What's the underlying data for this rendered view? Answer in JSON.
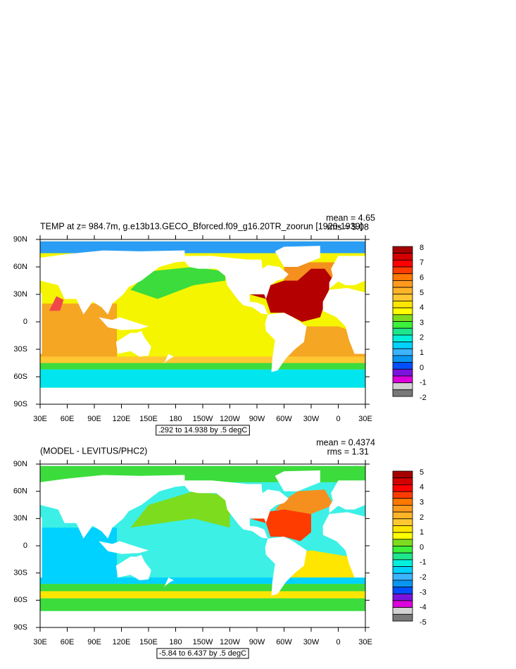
{
  "panels": [
    {
      "title": "TEMP at z= 984.7m, g.e13b13.GECO_Bforced.f09_g16.20TR_zoorun [1920-1939]",
      "mean": "mean = 4.65",
      "rms": "rms = 5.08",
      "range": ".292 to 14.938 by .5 degC",
      "colorbar": {
        "labels": [
          8,
          7,
          6,
          5,
          4,
          3,
          2,
          1,
          0,
          -1,
          -2
        ]
      }
    },
    {
      "title": "(MODEL - LEVITUS/PHC2)",
      "mean": "mean = 0.4374",
      "rms": "rms = 1.31",
      "range": "-5.84 to 6.437 by .5 degC",
      "colorbar": {
        "labels": [
          5,
          4,
          3,
          2,
          1,
          0,
          -1,
          -2,
          -3,
          -4,
          -5
        ]
      }
    }
  ],
  "colorbar_colors": [
    "#a50000",
    "#d40000",
    "#ff0000",
    "#ff3c00",
    "#ff7800",
    "#ff9a1e",
    "#ffb428",
    "#ffc832",
    "#ffe600",
    "#ffff00",
    "#7ddc1e",
    "#3cf03c",
    "#1ee68c",
    "#00f0dc",
    "#00d2ff",
    "#3cb4ff",
    "#0a96f0",
    "#0050ff",
    "#7a14dc",
    "#dc00dc",
    "#d2d2d2",
    "#787878"
  ],
  "lat_ticks": [
    {
      "value": 90,
      "label": "90N"
    },
    {
      "value": 60,
      "label": "60N"
    },
    {
      "value": 30,
      "label": "30N"
    },
    0,
    {
      "value": -30,
      "label": "30S"
    },
    {
      "value": -60,
      "label": "60S"
    },
    {
      "value": -90,
      "label": "90S"
    }
  ],
  "lon_ticks": [
    {
      "value": 30,
      "label": "30E"
    },
    {
      "value": 60,
      "label": "60E"
    },
    {
      "value": 90,
      "label": "90E"
    },
    {
      "value": 120,
      "label": "120E"
    },
    {
      "value": 150,
      "label": "150E"
    },
    {
      "value": 180,
      "label": "180"
    },
    {
      "value": 210,
      "label": "150W"
    },
    {
      "value": 240,
      "label": "120W"
    },
    {
      "value": 270,
      "label": "90W"
    },
    {
      "value": 300,
      "label": "60W"
    },
    {
      "value": 330,
      "label": "30W"
    },
    {
      "value": 360,
      "label": "0"
    },
    {
      "value": 390,
      "label": "30E"
    }
  ]
}
